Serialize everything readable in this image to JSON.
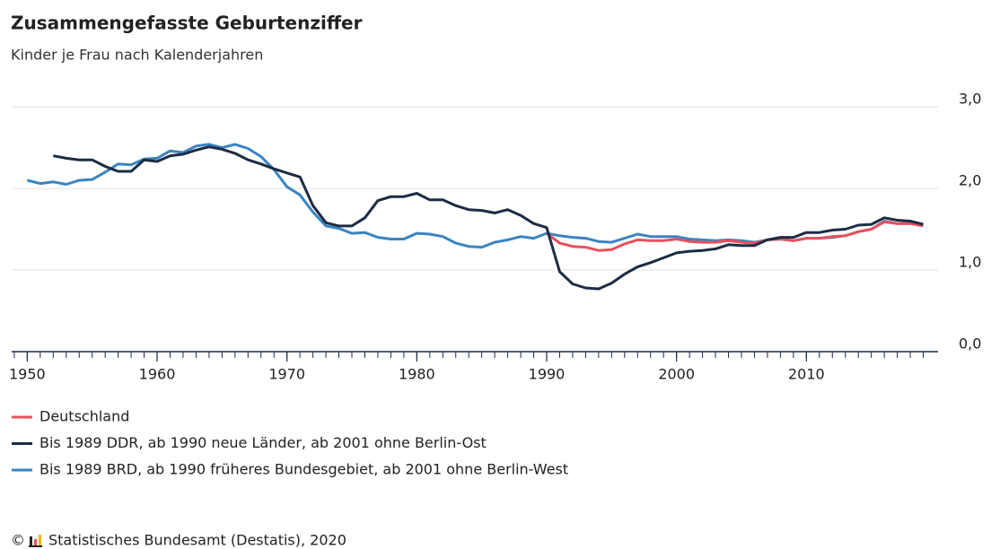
{
  "chart_data": {
    "type": "line",
    "title": "Zusammengefasste Geburtenziffer",
    "subtitle": "Kinder je Frau nach Kalenderjahren",
    "source": "Statistisches Bundesamt (Destatis), 2020",
    "copyright": "©",
    "x": [
      1950,
      1951,
      1952,
      1953,
      1954,
      1955,
      1956,
      1957,
      1958,
      1959,
      1960,
      1961,
      1962,
      1963,
      1964,
      1965,
      1966,
      1967,
      1968,
      1969,
      1970,
      1971,
      1972,
      1973,
      1974,
      1975,
      1976,
      1977,
      1978,
      1979,
      1980,
      1981,
      1982,
      1983,
      1984,
      1985,
      1986,
      1987,
      1988,
      1989,
      1990,
      1991,
      1992,
      1993,
      1994,
      1995,
      1996,
      1997,
      1998,
      1999,
      2000,
      2001,
      2002,
      2003,
      2004,
      2005,
      2006,
      2007,
      2008,
      2009,
      2010,
      2011,
      2012,
      2013,
      2014,
      2015,
      2016,
      2017,
      2018,
      2019
    ],
    "series": [
      {
        "name": "Deutschland",
        "color": "#e8505b",
        "values": [
          null,
          null,
          null,
          null,
          null,
          null,
          null,
          null,
          null,
          null,
          null,
          null,
          null,
          null,
          null,
          null,
          null,
          null,
          null,
          null,
          null,
          null,
          null,
          null,
          null,
          null,
          null,
          null,
          null,
          null,
          null,
          null,
          null,
          null,
          null,
          null,
          null,
          null,
          null,
          null,
          1.45,
          1.33,
          1.29,
          1.28,
          1.24,
          1.25,
          1.32,
          1.37,
          1.36,
          1.36,
          1.38,
          1.35,
          1.34,
          1.34,
          1.36,
          1.34,
          1.33,
          1.37,
          1.38,
          1.36,
          1.39,
          1.39,
          1.41,
          1.42,
          1.47,
          1.5,
          1.59,
          1.57,
          1.57,
          1.54
        ]
      },
      {
        "name": "Bis 1989 DDR, ab 1990 neue Länder, ab 2001 ohne Berlin-Ost",
        "color": "#1c2c44",
        "values": [
          null,
          null,
          2.4,
          2.37,
          2.35,
          2.35,
          2.27,
          2.21,
          2.21,
          2.35,
          2.33,
          2.4,
          2.42,
          2.47,
          2.51,
          2.48,
          2.43,
          2.35,
          2.3,
          2.24,
          2.19,
          2.14,
          1.79,
          1.58,
          1.54,
          1.54,
          1.64,
          1.85,
          1.9,
          1.9,
          1.94,
          1.86,
          1.86,
          1.79,
          1.74,
          1.73,
          1.7,
          1.74,
          1.67,
          1.57,
          1.52,
          0.98,
          0.83,
          0.78,
          0.77,
          0.84,
          0.95,
          1.04,
          1.09,
          1.15,
          1.21,
          1.23,
          1.24,
          1.26,
          1.31,
          1.3,
          1.3,
          1.37,
          1.4,
          1.4,
          1.46,
          1.46,
          1.49,
          1.5,
          1.55,
          1.56,
          1.64,
          1.61,
          1.6,
          1.56
        ]
      },
      {
        "name": "Bis 1989 BRD, ab 1990 früheres Bundesgebiet, ab 2001 ohne Berlin-West",
        "color": "#3a84c1",
        "values": [
          2.1,
          2.06,
          2.08,
          2.05,
          2.1,
          2.11,
          2.2,
          2.3,
          2.29,
          2.36,
          2.37,
          2.46,
          2.44,
          2.52,
          2.54,
          2.5,
          2.54,
          2.49,
          2.39,
          2.23,
          2.02,
          1.92,
          1.71,
          1.54,
          1.51,
          1.45,
          1.46,
          1.4,
          1.38,
          1.38,
          1.45,
          1.44,
          1.41,
          1.33,
          1.29,
          1.28,
          1.34,
          1.37,
          1.41,
          1.39,
          1.45,
          1.42,
          1.4,
          1.39,
          1.35,
          1.34,
          1.39,
          1.44,
          1.41,
          1.41,
          1.41,
          1.38,
          1.37,
          1.36,
          1.37,
          1.36,
          1.34,
          1.37,
          1.38,
          1.36,
          1.39,
          1.39,
          1.4,
          1.42,
          1.47,
          1.5,
          1.6,
          1.57,
          1.57,
          1.55
        ]
      }
    ],
    "xlim": [
      1948.8,
      2020
    ],
    "xticks": [
      1950,
      1960,
      1970,
      1980,
      1990,
      2000,
      2010
    ],
    "minor_xticks": [
      1949,
      1950,
      1951,
      1952,
      1953,
      1954,
      1955,
      1956,
      1957,
      1958,
      1959,
      1960,
      1961,
      1962,
      1963,
      1964,
      1965,
      1966,
      1967,
      1968,
      1969,
      1970,
      1971,
      1972,
      1973,
      1974,
      1975,
      1976,
      1977,
      1978,
      1979,
      1980,
      1981,
      1982,
      1983,
      1984,
      1985,
      1986,
      1987,
      1988,
      1989,
      1990,
      1991,
      1992,
      1993,
      1994,
      1995,
      1996,
      1997,
      1998,
      1999,
      2000,
      2001,
      2002,
      2003,
      2004,
      2005,
      2006,
      2007,
      2008,
      2009,
      2010,
      2011,
      2012,
      2013,
      2014,
      2015,
      2016,
      2017,
      2018,
      2019
    ],
    "ylim": [
      0,
      3.1
    ],
    "yticks": [
      {
        "value": 0,
        "label": "0,0"
      },
      {
        "value": 1,
        "label": "1,0"
      },
      {
        "value": 2,
        "label": "2,0"
      },
      {
        "value": 3,
        "label": "3,0"
      }
    ],
    "grid": true
  }
}
